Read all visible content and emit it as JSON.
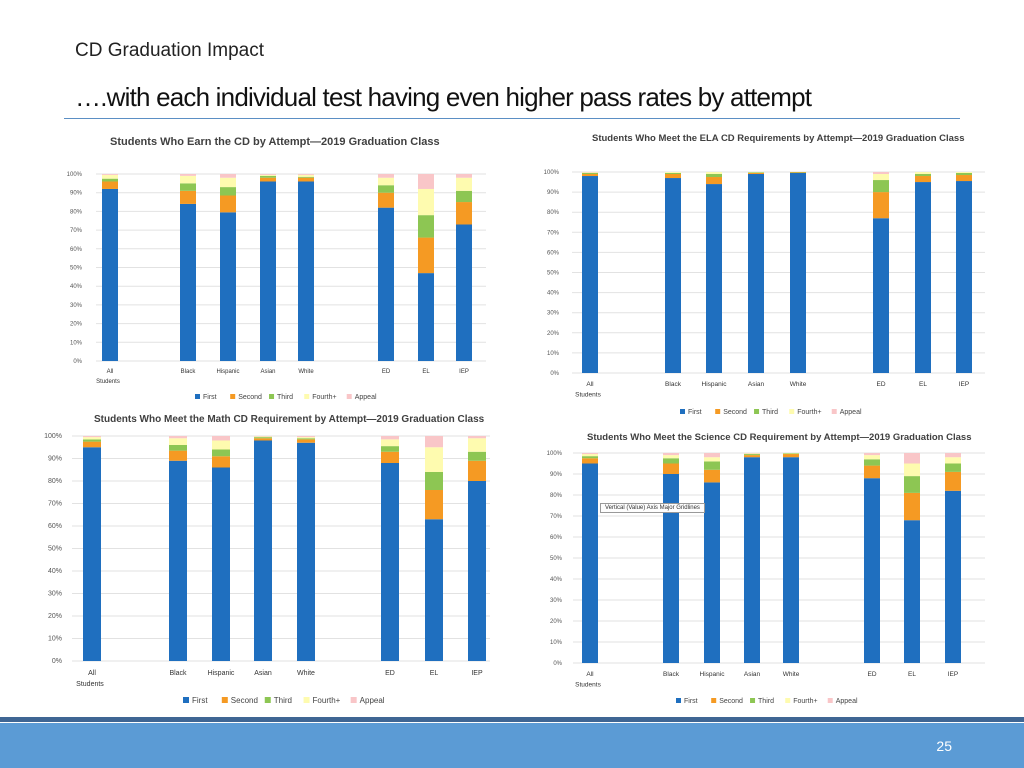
{
  "slide": {
    "subtitle": "CD Graduation Impact",
    "heading": "….with each individual test having even higher pass rates by attempt",
    "page_number": "25",
    "tooltip": "Vertical (Value) Axis Major Gridlines"
  },
  "colors": {
    "First": "#1f6fbf",
    "Second": "#f59a23",
    "Third": "#8dc653",
    "Fourth+": "#fefbaf",
    "Appeal": "#f9c6c8",
    "heading_rule": "#5b8fc4",
    "footer_band": "#5b9bd5",
    "footer_dark": "#3f6694"
  },
  "chart_data": [
    {
      "id": "cd",
      "type": "bar",
      "stacked": true,
      "title": "Students Who Earn the CD by Attempt—2019 Graduation Class",
      "categories": [
        "All Students",
        "Black",
        "Hispanic",
        "Asian",
        "White",
        "ED",
        "EL",
        "IEP"
      ],
      "category_groups": [
        0,
        1,
        1,
        1,
        1,
        2,
        2,
        2
      ],
      "ylim": [
        0,
        100
      ],
      "yticks": [
        "0%",
        "10%",
        "20%",
        "30%",
        "40%",
        "50%",
        "60%",
        "70%",
        "80%",
        "90%",
        "100%"
      ],
      "grid": true,
      "legend": "bottom",
      "series": [
        {
          "name": "First",
          "values": [
            92,
            84,
            79.5,
            96,
            96,
            82,
            47,
            73
          ]
        },
        {
          "name": "Second",
          "values": [
            4,
            7,
            9,
            2,
            2,
            8,
            19,
            12
          ]
        },
        {
          "name": "Third",
          "values": [
            1.5,
            4,
            4.5,
            1,
            0.5,
            4,
            12,
            6
          ]
        },
        {
          "name": "Fourth+",
          "values": [
            2,
            4,
            5,
            0.5,
            1,
            4,
            14,
            7
          ]
        },
        {
          "name": "Appeal",
          "values": [
            0.5,
            1,
            2,
            0.5,
            0.5,
            2,
            8,
            2
          ]
        }
      ]
    },
    {
      "id": "ela",
      "type": "bar",
      "stacked": true,
      "title": "Students Who Meet the ELA CD Requirements by Attempt—2019 Graduation Class",
      "categories": [
        "All Students",
        "Black",
        "Hispanic",
        "Asian",
        "White",
        "ED",
        "EL",
        "IEP"
      ],
      "category_groups": [
        0,
        1,
        1,
        1,
        1,
        2,
        2,
        2
      ],
      "ylim": [
        0,
        100
      ],
      "yticks": [
        "0%",
        "10%",
        "20%",
        "30%",
        "40%",
        "50%",
        "60%",
        "70%",
        "80%",
        "90%",
        "100%"
      ],
      "grid": true,
      "legend": "bottom",
      "series": [
        {
          "name": "First",
          "values": [
            98,
            97,
            94,
            99,
            99.5,
            77,
            95,
            95.5
          ]
        },
        {
          "name": "Second",
          "values": [
            1,
            2,
            3.5,
            0.5,
            0.3,
            13,
            3,
            3
          ]
        },
        {
          "name": "Third",
          "values": [
            0.5,
            0.5,
            1.5,
            0.3,
            0.2,
            6,
            1,
            1
          ]
        },
        {
          "name": "Fourth+",
          "values": [
            0.3,
            0.5,
            1,
            0.2,
            0,
            3,
            1,
            0.5
          ]
        },
        {
          "name": "Appeal",
          "values": [
            0.2,
            0,
            0,
            0,
            0,
            1,
            0,
            0
          ]
        }
      ]
    },
    {
      "id": "math",
      "type": "bar",
      "stacked": true,
      "title": "Students Who Meet the Math CD Requirement by Attempt—2019 Graduation Class",
      "categories": [
        "All Students",
        "Black",
        "Hispanic",
        "Asian",
        "White",
        "ED",
        "EL",
        "IEP"
      ],
      "category_groups": [
        0,
        1,
        1,
        1,
        1,
        2,
        2,
        2
      ],
      "ylim": [
        0,
        100
      ],
      "yticks": [
        "0%",
        "10%",
        "20%",
        "30%",
        "40%",
        "50%",
        "60%",
        "70%",
        "80%",
        "90%",
        "100%"
      ],
      "grid": true,
      "legend": "bottom",
      "series": [
        {
          "name": "First",
          "values": [
            95,
            89,
            86,
            98,
            97,
            88,
            63,
            80
          ]
        },
        {
          "name": "Second",
          "values": [
            2.5,
            4.5,
            5,
            1,
            1.5,
            5,
            13,
            9
          ]
        },
        {
          "name": "Third",
          "values": [
            1,
            2.5,
            3,
            0.5,
            0.5,
            2.5,
            8,
            4
          ]
        },
        {
          "name": "Fourth+",
          "values": [
            1,
            3,
            4,
            0.3,
            0.5,
            3,
            11,
            6
          ]
        },
        {
          "name": "Appeal",
          "values": [
            0.5,
            1,
            2,
            0.2,
            0.5,
            1.5,
            5,
            1
          ]
        }
      ]
    },
    {
      "id": "science",
      "type": "bar",
      "stacked": true,
      "title": "Students Who Meet the Science CD Requirement by Attempt—2019 Graduation Class",
      "categories": [
        "All Students",
        "Black",
        "Hispanic",
        "Asian",
        "White",
        "ED",
        "EL",
        "IEP"
      ],
      "category_groups": [
        0,
        1,
        1,
        1,
        1,
        2,
        2,
        2
      ],
      "ylim": [
        0,
        100
      ],
      "yticks": [
        "0%",
        "10%",
        "20%",
        "30%",
        "40%",
        "50%",
        "60%",
        "70%",
        "80%",
        "90%",
        "100%"
      ],
      "grid": true,
      "legend": "bottom",
      "series": [
        {
          "name": "First",
          "values": [
            95,
            90,
            86,
            98,
            98,
            88,
            68,
            82
          ]
        },
        {
          "name": "Second",
          "values": [
            2.5,
            5,
            6,
            1,
            1.5,
            6,
            13,
            9
          ]
        },
        {
          "name": "Third",
          "values": [
            1,
            2.5,
            4,
            0.5,
            0.3,
            3,
            8,
            4
          ]
        },
        {
          "name": "Fourth+",
          "values": [
            1,
            1.5,
            2,
            0.3,
            0.2,
            2,
            6,
            3
          ]
        },
        {
          "name": "Appeal",
          "values": [
            0.5,
            1,
            2,
            0.2,
            0,
            1,
            5,
            2
          ]
        }
      ]
    }
  ]
}
